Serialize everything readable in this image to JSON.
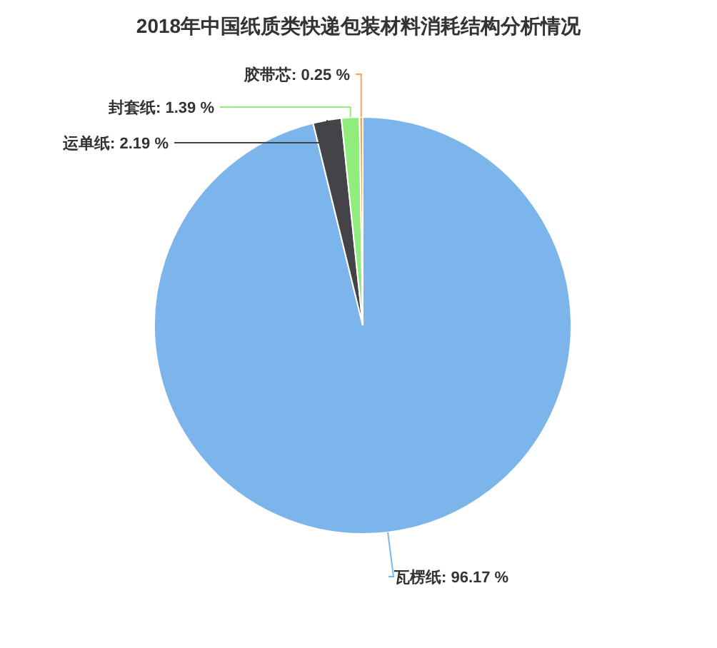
{
  "chart_data": {
    "type": "pie",
    "title": "2018年中国纸质类快递包装材料消耗结构分析情况",
    "categories": [
      "瓦楞纸",
      "运单纸",
      "封套纸",
      "胶带芯"
    ],
    "values": [
      96.17,
      2.19,
      1.39,
      0.25
    ],
    "colors": [
      "#7cb5ec",
      "#434348",
      "#90ed7d",
      "#f7a35c"
    ],
    "value_labels": [
      ": 96.17 %",
      ": 2.19 %",
      ": 1.39 %",
      ": 0.25 %"
    ]
  }
}
